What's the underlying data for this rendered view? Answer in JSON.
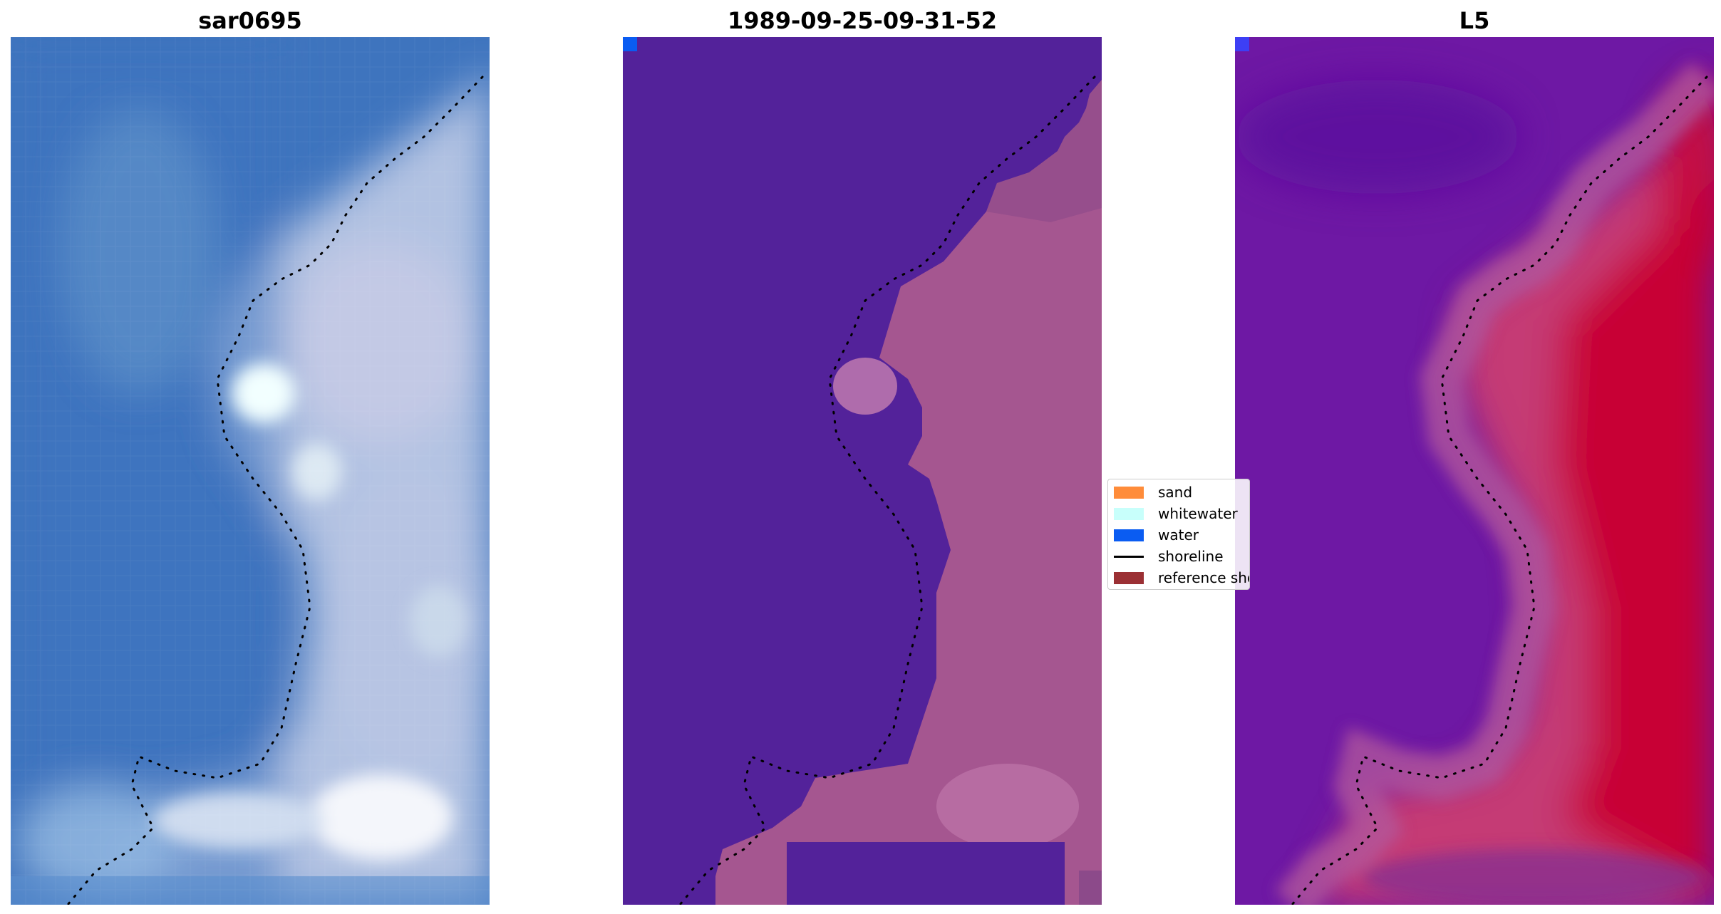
{
  "panels": [
    {
      "title": "sar0695"
    },
    {
      "title": "1989-09-25-09-31-52"
    },
    {
      "title": "L5"
    }
  ],
  "colors": {
    "sand": "#ff8c3a",
    "whitewater": "#c8fffb",
    "water": "#0a5cf2",
    "shoreline": "#000000",
    "reference": "#9b3034",
    "classified_water_region": "#53229a",
    "classified_land_region": "#a55690",
    "index_low": "#6e18a4",
    "index_high": "#c8002f",
    "rgb_water": "#3b74bf",
    "rgb_land": "#b7c4e0"
  },
  "legend": {
    "items": [
      {
        "label": "sand",
        "kind": "patch",
        "color": "#ff8c3a"
      },
      {
        "label": "whitewater",
        "kind": "patch",
        "color": "#c8fffb"
      },
      {
        "label": "water",
        "kind": "patch",
        "color": "#0a5cf2"
      },
      {
        "label": "shoreline",
        "kind": "line",
        "color": "#000000"
      },
      {
        "label": "reference shoreline",
        "kind": "patch",
        "color": "#9b3034"
      }
    ]
  }
}
